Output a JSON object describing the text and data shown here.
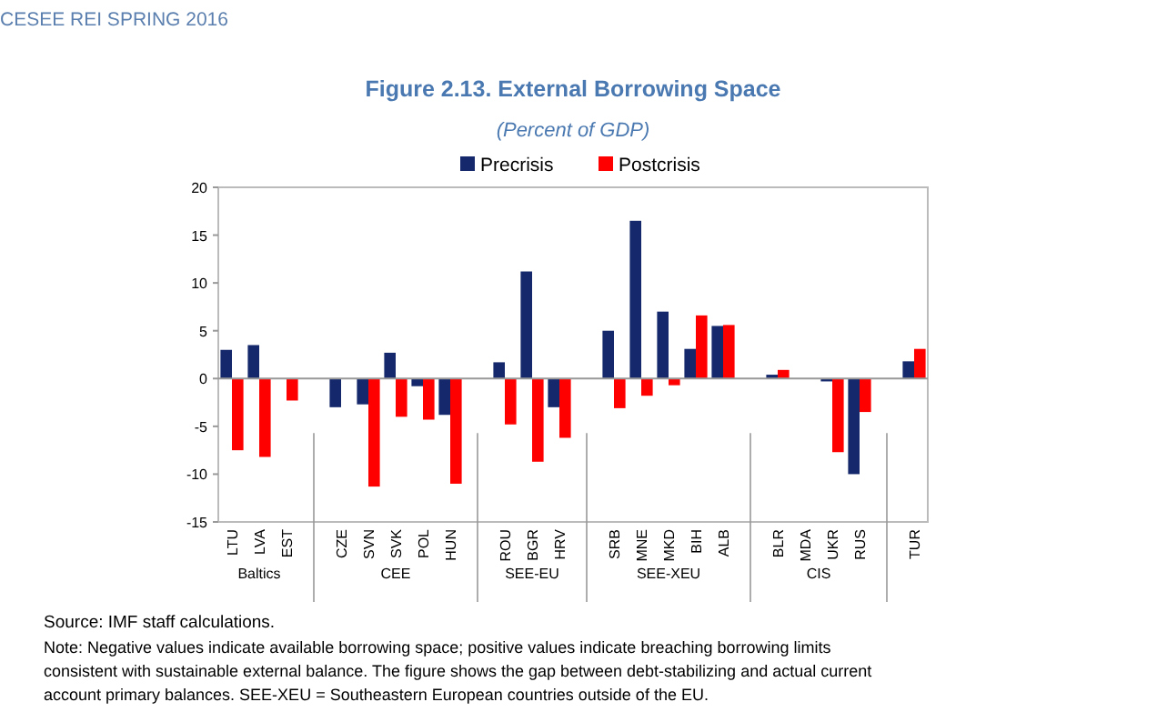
{
  "chart_data": {
    "type": "bar",
    "title": "Figure 2.13. External Borrowing Space",
    "subtitle": "(Percent of GDP)",
    "categories": [
      "LTU",
      "LVA",
      "EST",
      null,
      "CZE",
      "SVN",
      "SVK",
      "POL",
      "HUN",
      null,
      "ROU",
      "BGR",
      "HRV",
      null,
      "SRB",
      "MNE",
      "MKD",
      "BIH",
      "ALB",
      null,
      "BLR",
      "MDA",
      "UKR",
      "RUS",
      null,
      "TUR"
    ],
    "series": [
      {
        "name": "Precrisis",
        "color": "#14286b",
        "values": [
          3,
          3.5,
          null,
          null,
          -3,
          -2.7,
          2.7,
          -0.8,
          -3.8,
          null,
          1.7,
          11.2,
          -3,
          null,
          5,
          16.5,
          7,
          3.1,
          5.5,
          null,
          0.4,
          null,
          -0.3,
          -10,
          null,
          1.8
        ]
      },
      {
        "name": "Postcrisis",
        "color": "#ff0000",
        "values": [
          -7.5,
          -8.2,
          -2.3,
          null,
          null,
          -11.3,
          -4,
          -4.3,
          -11,
          null,
          -4.8,
          -8.7,
          -6.2,
          null,
          -3.1,
          -1.8,
          -0.7,
          6.6,
          5.6,
          null,
          0.9,
          null,
          -7.7,
          -3.5,
          null,
          3.1
        ]
      }
    ],
    "ylim": [
      -15,
      20
    ],
    "yticks": [
      -15,
      -10,
      -5,
      0,
      5,
      10,
      15,
      20
    ],
    "legend": "top",
    "annotations": [
      "CESEE REI SPRING 2016",
      "Baltics",
      "CEE",
      "SEE-EU",
      "SEE-XEU",
      "CIS",
      "Source: IMF staff calculations.",
      "Note: Negative values indicate available borrowing space; positive values indicate breaching borrowing limits consistent with sustainable external balance. The figure shows the gap between debt-stabilizing and actual current account primary balances. SEE-XEU = Southeastern European countries outside of the EU."
    ]
  }
}
